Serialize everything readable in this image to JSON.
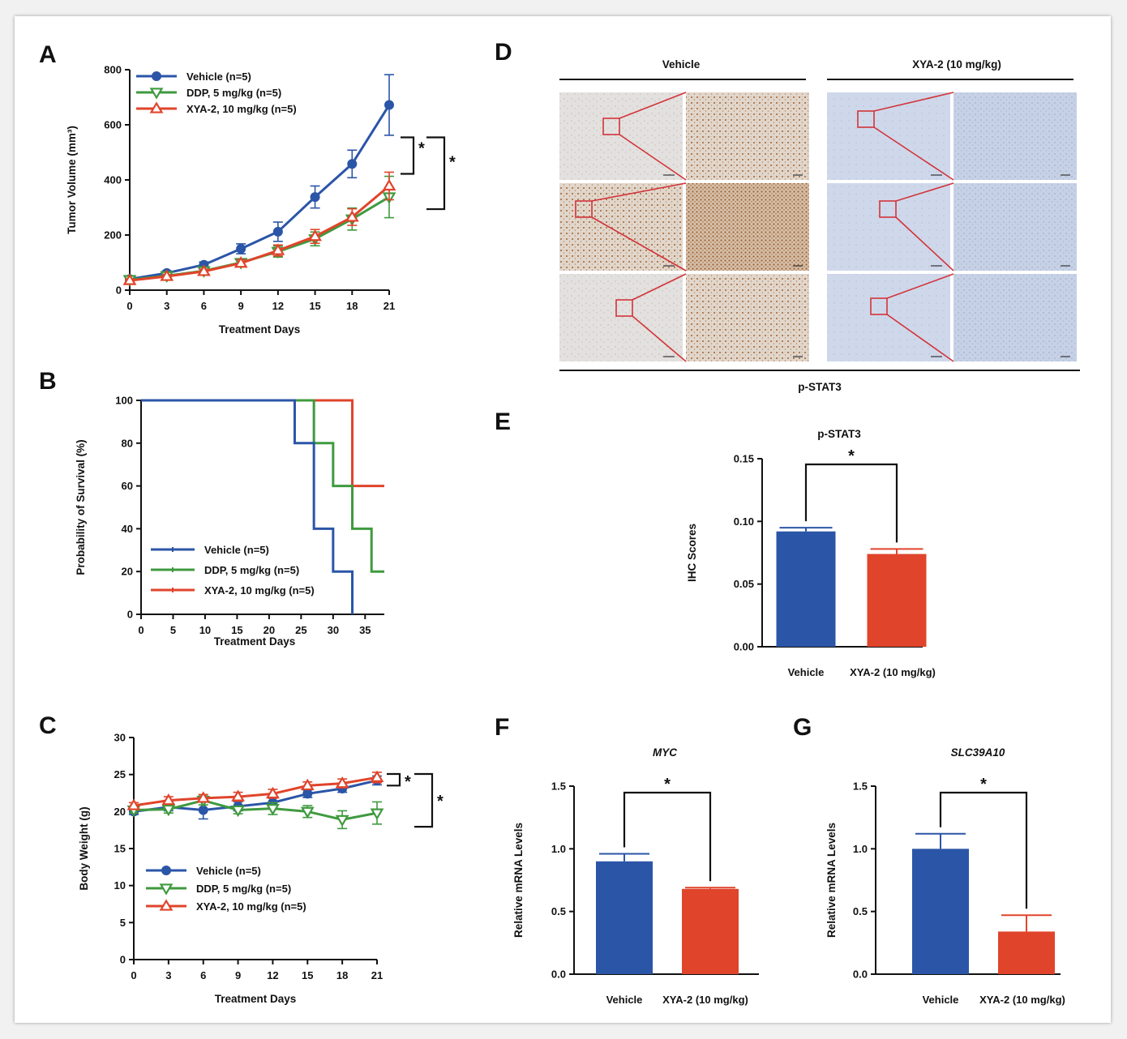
{
  "panel_letters": [
    "A",
    "B",
    "C",
    "D",
    "E",
    "F",
    "G"
  ],
  "colors": {
    "vehicle": "#2b55a7",
    "ddp": "#3f9a3f",
    "xya": "#e0442b"
  },
  "chart_data": [
    {
      "id": "A",
      "type": "line",
      "xlabel": "Treatment Days",
      "ylabel": "Tumor Volume (mm³)",
      "x": [
        0,
        3,
        6,
        9,
        12,
        15,
        18,
        21
      ],
      "xticks": [
        "0",
        "3",
        "6",
        "9",
        "12",
        "15",
        "18",
        "21"
      ],
      "ylim": [
        0,
        800
      ],
      "yticks": [
        "0",
        "200",
        "400",
        "600",
        "800"
      ],
      "series": [
        {
          "name": "Vehicle (n=5)",
          "color": "#2b55a7",
          "marker": "circle",
          "values": [
            40,
            62,
            92,
            150,
            212,
            338,
            458,
            672
          ],
          "err": [
            6,
            8,
            10,
            18,
            35,
            40,
            50,
            110
          ]
        },
        {
          "name": "DDP, 5 mg/kg (n=5)",
          "color": "#3f9a3f",
          "marker": "tri-down",
          "values": [
            38,
            52,
            70,
            100,
            140,
            186,
            258,
            338
          ],
          "err": [
            5,
            6,
            8,
            12,
            20,
            25,
            40,
            75
          ]
        },
        {
          "name": "XYA-2, 10 mg/kg (n=5)",
          "color": "#e0442b",
          "marker": "tri-up",
          "values": [
            35,
            50,
            68,
            98,
            144,
            195,
            265,
            378
          ],
          "err": [
            5,
            6,
            8,
            12,
            20,
            25,
            30,
            50
          ]
        }
      ],
      "annotations": [
        "*",
        "*"
      ]
    },
    {
      "id": "B",
      "type": "line",
      "xlabel": "Treatment Days",
      "ylabel": "Probability of Survival (%)",
      "xlim": [
        0,
        38
      ],
      "xticks": [
        "0",
        "5",
        "10",
        "15",
        "20",
        "25",
        "30",
        "35"
      ],
      "ylim": [
        0,
        100
      ],
      "yticks": [
        "0",
        "20",
        "40",
        "60",
        "80",
        "100"
      ],
      "series": [
        {
          "name": "Vehicle (n=5)",
          "color": "#2b55a7",
          "steps": [
            [
              0,
              100
            ],
            [
              24,
              100
            ],
            [
              24,
              80
            ],
            [
              27,
              80
            ],
            [
              27,
              40
            ],
            [
              30,
              40
            ],
            [
              30,
              20
            ],
            [
              33,
              20
            ],
            [
              33,
              0
            ]
          ]
        },
        {
          "name": "DDP, 5 mg/kg (n=5)",
          "color": "#3f9a3f",
          "steps": [
            [
              0,
              100
            ],
            [
              27,
              100
            ],
            [
              27,
              80
            ],
            [
              30,
              80
            ],
            [
              30,
              60
            ],
            [
              33,
              60
            ],
            [
              33,
              40
            ],
            [
              36,
              40
            ],
            [
              36,
              20
            ],
            [
              38,
              20
            ]
          ]
        },
        {
          "name": "XYA-2, 10 mg/kg (n=5)",
          "color": "#e0442b",
          "steps": [
            [
              0,
              100
            ],
            [
              33,
              100
            ],
            [
              33,
              60
            ],
            [
              38,
              60
            ]
          ]
        }
      ]
    },
    {
      "id": "C",
      "type": "line",
      "xlabel": "Treatment  Days",
      "ylabel": "Body Weight (g)",
      "x": [
        0,
        3,
        6,
        9,
        12,
        15,
        18,
        21
      ],
      "xticks": [
        "0",
        "3",
        "6",
        "9",
        "12",
        "15",
        "18",
        "21"
      ],
      "ylim": [
        0,
        30
      ],
      "yticks": [
        "0",
        "5",
        "10",
        "15",
        "20",
        "25",
        "30"
      ],
      "series": [
        {
          "name": "Vehicle (n=5)",
          "color": "#2b55a7",
          "marker": "circle",
          "values": [
            20.0,
            20.6,
            20.2,
            20.7,
            21.2,
            22.4,
            23.1,
            24.2
          ],
          "err": [
            0.4,
            0.5,
            1.2,
            0.6,
            0.6,
            0.5,
            0.5,
            0.6
          ]
        },
        {
          "name": "DDP, 5 mg/kg (n=5)",
          "color": "#3f9a3f",
          "marker": "tri-down",
          "values": [
            20.2,
            20.3,
            21.5,
            20.2,
            20.4,
            20.0,
            18.9,
            19.8
          ],
          "err": [
            0.4,
            0.5,
            0.6,
            0.5,
            0.8,
            0.8,
            1.2,
            1.5
          ]
        },
        {
          "name": "XYA-2, 10 mg/kg (n=5)",
          "color": "#e0442b",
          "marker": "tri-up",
          "values": [
            20.8,
            21.5,
            21.8,
            22.0,
            22.4,
            23.5,
            23.8,
            24.6
          ],
          "err": [
            0.4,
            0.5,
            0.5,
            0.6,
            0.6,
            0.5,
            0.6,
            0.7
          ]
        }
      ],
      "annotations": [
        "*",
        "*"
      ]
    },
    {
      "id": "E",
      "type": "bar",
      "title": "p-STAT3",
      "ylabel": "IHC Scores",
      "categories": [
        "Vehicle",
        "XYA-2 (10 mg/kg)"
      ],
      "values": [
        0.092,
        0.074
      ],
      "err": [
        0.003,
        0.004
      ],
      "colors": [
        "#2b55a7",
        "#e0442b"
      ],
      "ylim": [
        0,
        0.15
      ],
      "yticks": [
        "0.00",
        "0.05",
        "0.10",
        "0.15"
      ],
      "annotation": "*"
    },
    {
      "id": "F",
      "type": "bar",
      "title": "MYC",
      "ylabel": "Relative mRNA  Levels",
      "categories": [
        "Vehicle",
        "XYA-2 (10 mg/kg)"
      ],
      "values": [
        0.9,
        0.68
      ],
      "err": [
        0.06,
        0.01
      ],
      "colors": [
        "#2b55a7",
        "#e0442b"
      ],
      "ylim": [
        0,
        1.5
      ],
      "yticks": [
        "0.0",
        "0.5",
        "1.0",
        "1.5"
      ],
      "annotation": "*"
    },
    {
      "id": "G",
      "type": "bar",
      "title": "SLC39A10",
      "ylabel": "Relative mRNA  Levels",
      "categories": [
        "Vehicle",
        "XYA-2 (10 mg/kg)"
      ],
      "values": [
        1.0,
        0.34
      ],
      "err": [
        0.12,
        0.13
      ],
      "colors": [
        "#2b55a7",
        "#e0442b"
      ],
      "ylim": [
        0,
        1.5
      ],
      "yticks": [
        "0.0",
        "0.5",
        "1.0",
        "1.5"
      ],
      "annotation": "*"
    }
  ],
  "panel_d": {
    "group_labels": [
      "Vehicle",
      "XYA-2 (10 mg/kg)"
    ],
    "stain_label": "p-STAT3",
    "rows": 3
  }
}
